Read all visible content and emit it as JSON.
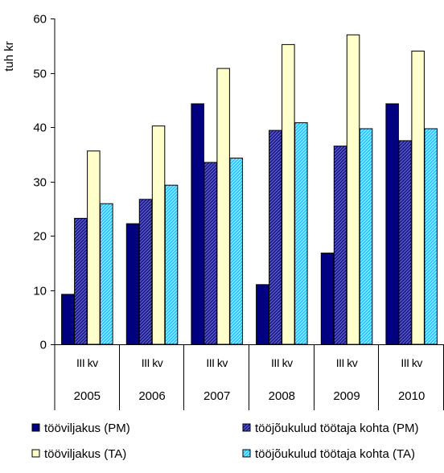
{
  "chart_data": {
    "type": "bar",
    "ylabel": "tuh kr",
    "ylim": [
      0,
      60
    ],
    "yticks": [
      0,
      10,
      20,
      30,
      40,
      50,
      60
    ],
    "grid": false,
    "legend_position": "bottom",
    "categories": [
      {
        "quarter": "III kv",
        "year": "2005"
      },
      {
        "quarter": "III kv",
        "year": "2006"
      },
      {
        "quarter": "III kv",
        "year": "2007"
      },
      {
        "quarter": "III kv",
        "year": "2008"
      },
      {
        "quarter": "III kv",
        "year": "2009"
      },
      {
        "quarter": "III kv",
        "year": "2010"
      }
    ],
    "series": [
      {
        "name": "tööviljakus (PM)",
        "color": "#000080",
        "pattern": "solid",
        "values": [
          9.2,
          22.2,
          44.3,
          11.0,
          16.8,
          44.3
        ]
      },
      {
        "name": "tööjõukulud töötaja kohta (PM)",
        "color": "#3333aa",
        "pattern": "hatch-dark",
        "values": [
          23.2,
          26.7,
          33.5,
          39.4,
          36.5,
          37.5
        ]
      },
      {
        "name": "tööviljakus (TA)",
        "color": "#ffffcc",
        "pattern": "solid-light",
        "values": [
          35.6,
          40.2,
          50.8,
          55.2,
          57.0,
          54.0
        ]
      },
      {
        "name": "tööjõukulud töötaja kohta (TA)",
        "color": "#33ccff",
        "pattern": "hatch-light",
        "values": [
          25.9,
          29.3,
          34.3,
          40.8,
          39.7,
          39.7
        ]
      }
    ]
  }
}
